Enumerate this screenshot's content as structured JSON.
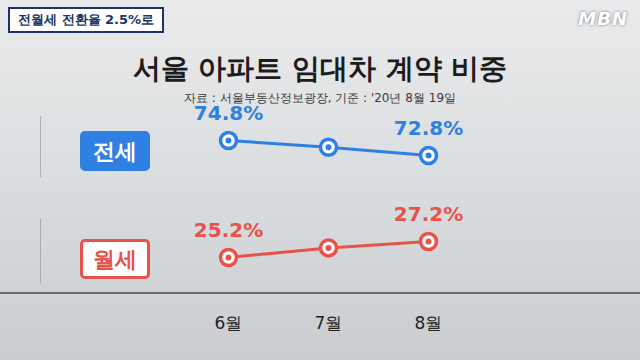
{
  "header": "전월세 전환율 2.5%로",
  "logo": "MBN",
  "chart_data": {
    "type": "line",
    "title": "서울 아파트 임대차 계약 비중",
    "subtitle": "자료 : 서울부동산정보광장, 기준 : '20년 8월 19일",
    "categories": [
      "6월",
      "7월",
      "8월"
    ],
    "series": [
      {
        "name": "전세",
        "color": "#2f80e3",
        "values": [
          74.8,
          73.9,
          72.8
        ],
        "value_labels": [
          "74.8%",
          null,
          "72.8%"
        ],
        "marker": "circle"
      },
      {
        "name": "월세",
        "color": "#e8524a",
        "values": [
          25.2,
          26.4,
          27.2
        ],
        "value_labels": [
          "25.2%",
          null,
          "27.2%"
        ],
        "marker": "circle",
        "axis": "y2"
      }
    ],
    "ylim": [
      70,
      78
    ],
    "yticks": [],
    "y2lim": [
      22,
      30
    ],
    "y2ticks": [],
    "data_labels": true,
    "tick_labels": "x",
    "grid": false
  }
}
